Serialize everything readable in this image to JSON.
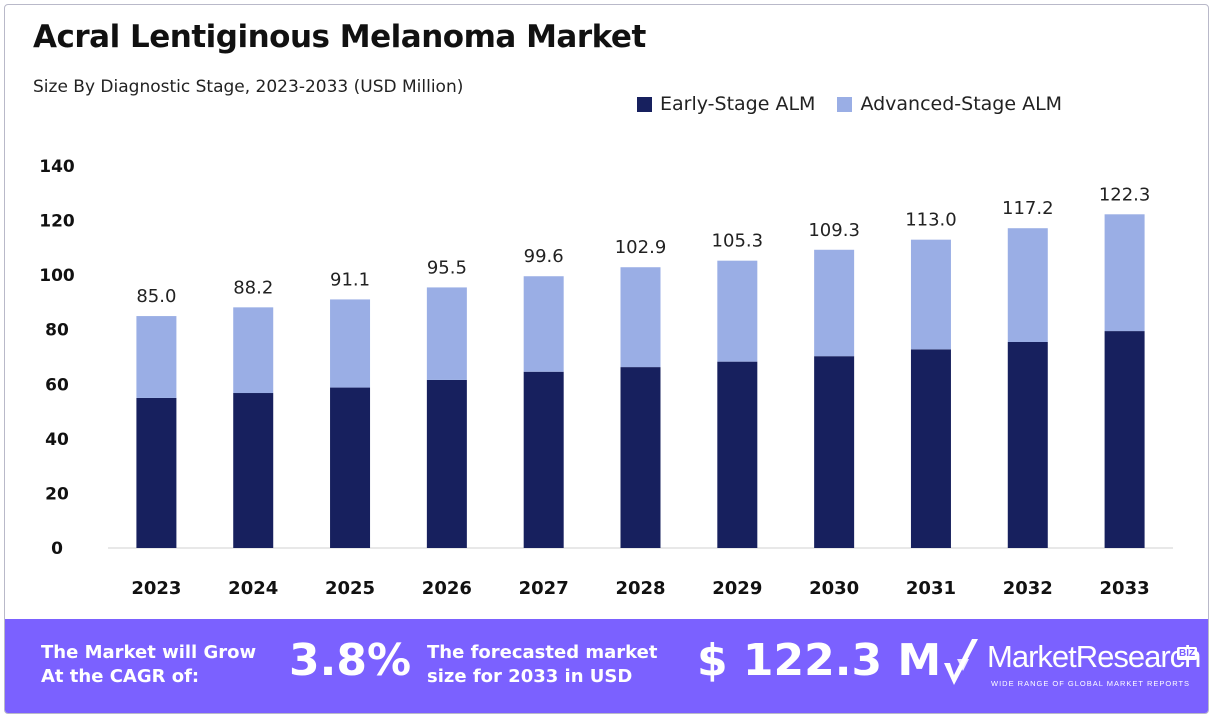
{
  "title": "Acral Lentiginous Melanoma Market",
  "subtitle": "Size By Diagnostic Stage, 2023-2033 (USD Million)",
  "colors": {
    "early": "#17205e",
    "advanced": "#9aaee5",
    "footer": "#7b61ff"
  },
  "chart_data": {
    "type": "bar",
    "stacked": true,
    "categories": [
      "2023",
      "2024",
      "2025",
      "2026",
      "2027",
      "2028",
      "2029",
      "2030",
      "2031",
      "2032",
      "2033"
    ],
    "series": [
      {
        "name": "Early-Stage ALM",
        "values": [
          55.0,
          56.8,
          58.8,
          61.6,
          64.6,
          66.3,
          68.3,
          70.3,
          72.8,
          75.5,
          79.5
        ]
      },
      {
        "name": "Advanced-Stage ALM",
        "values": [
          30.0,
          31.4,
          32.3,
          33.9,
          35.0,
          36.6,
          37.0,
          39.0,
          40.2,
          41.7,
          42.8
        ]
      }
    ],
    "totals": [
      "85.0",
      "88.2",
      "91.1",
      "95.5",
      "99.6",
      "102.9",
      "105.3",
      "109.3",
      "113.0",
      "117.2",
      "122.3"
    ],
    "ylim": [
      0,
      140
    ],
    "yticks": [
      "0",
      "20",
      "40",
      "60",
      "80",
      "100",
      "120",
      "140"
    ],
    "legend_position": "top-right",
    "grid": false
  },
  "footer": {
    "line1": "The Market will Grow",
    "line2": "At the CAGR of:",
    "cagr": "3.8%",
    "forecast_line1": "The forecasted market",
    "forecast_line2": "size for 2033 in USD",
    "forecast_value": "$ 122.3 M"
  },
  "logo": {
    "name": "MarketResearch",
    "badge": "BIZ",
    "tagline": "WIDE RANGE OF GLOBAL MARKET REPORTS",
    "icon": "checkmark-logo-icon"
  }
}
